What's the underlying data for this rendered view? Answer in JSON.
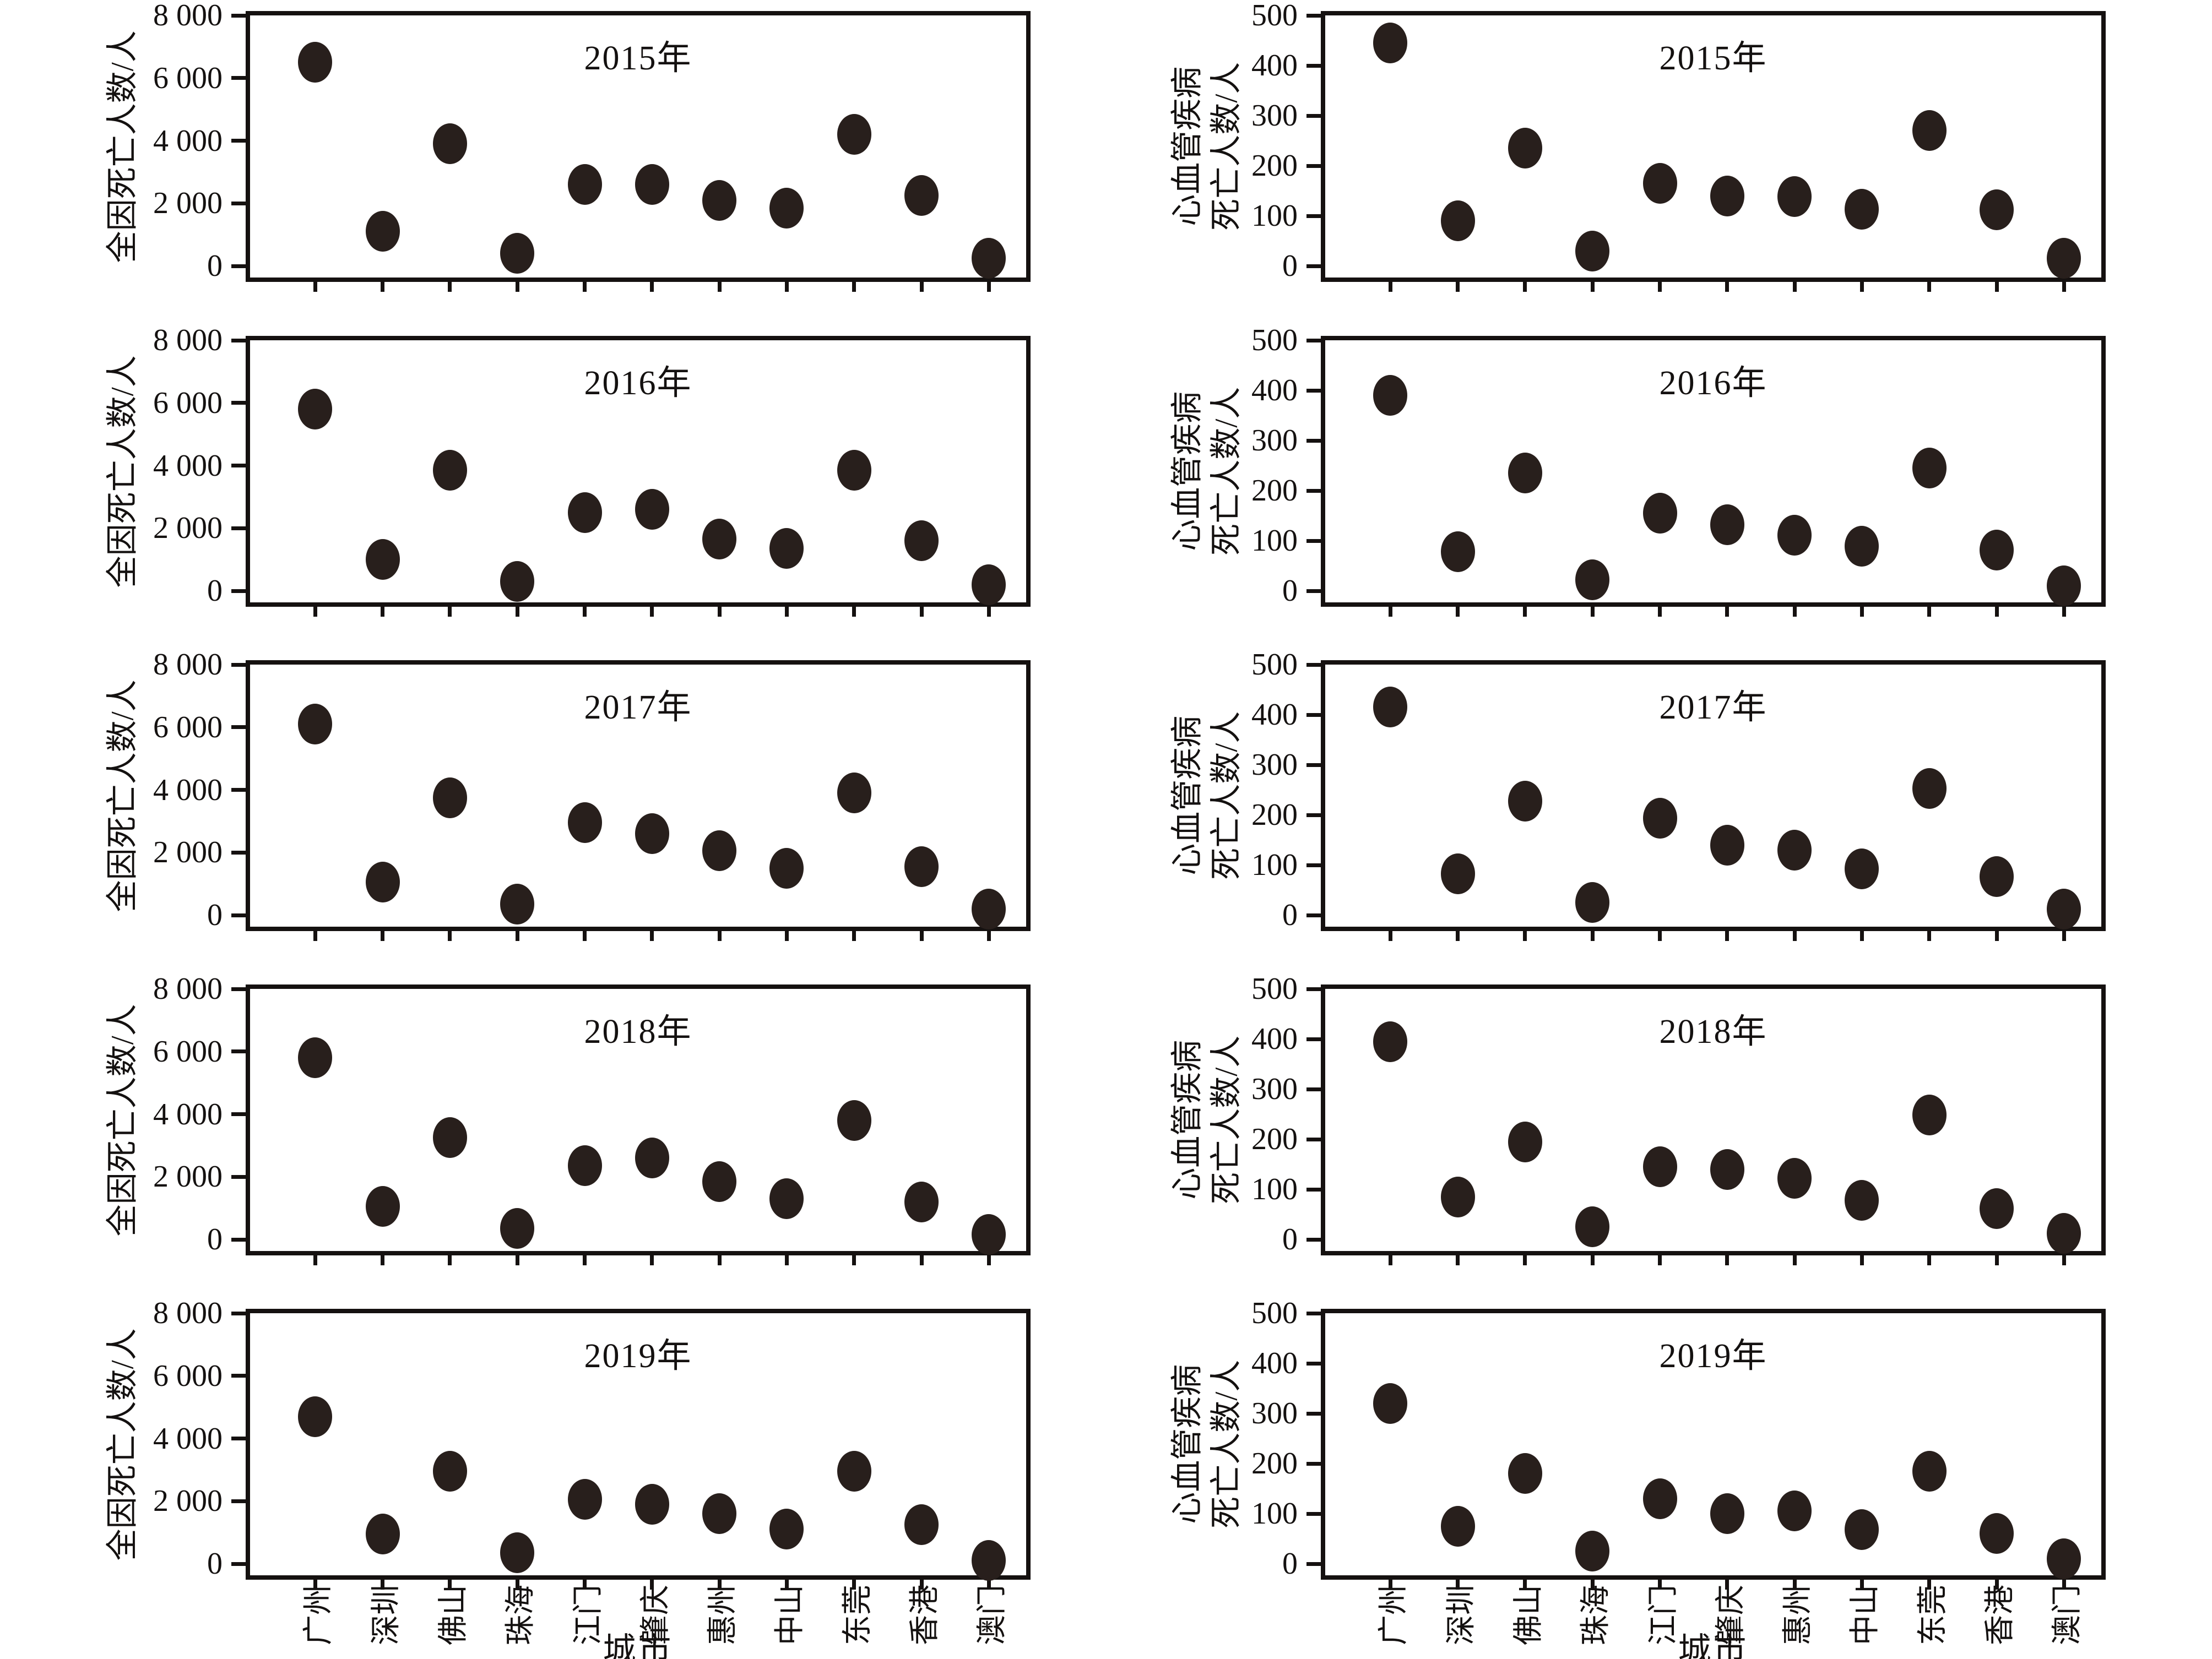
{
  "figure": {
    "xlabel": "城市",
    "left_ylabel_lines": [
      "全因死亡人数/人"
    ],
    "right_ylabel_lines": [
      "心血管疾病",
      "死亡人数/人"
    ],
    "left_ytick_labels": [
      "8 000",
      "6 000",
      "4 000",
      "2 000",
      "0"
    ],
    "right_ytick_labels": [
      "500",
      "400",
      "300",
      "200",
      "100",
      "0"
    ],
    "dot_color": "#281f1c",
    "frame_color": "#151110",
    "categories": [
      "广州",
      "深圳",
      "佛山",
      "珠海",
      "江门",
      "肇庆",
      "惠州",
      "中山",
      "东莞",
      "香港",
      "澳门"
    ]
  },
  "chart_data": [
    {
      "type": "scatter",
      "title": "2015年",
      "ylabel": "全因死亡人数/人",
      "categories": [
        "广州",
        "深圳",
        "佛山",
        "珠海",
        "江门",
        "肇庆",
        "惠州",
        "中山",
        "东莞",
        "香港",
        "澳门"
      ],
      "values": [
        6500,
        1100,
        3900,
        400,
        2600,
        2600,
        2100,
        1850,
        4200,
        2250,
        250
      ],
      "ylim": [
        0,
        8000
      ],
      "ytick_values": [
        8000,
        6000,
        4000,
        2000,
        0
      ],
      "ytick_labels": [
        "8 000",
        "6 000",
        "4 000",
        "2 000",
        "0"
      ],
      "grid": false,
      "legend": "none"
    },
    {
      "type": "scatter",
      "title": "2015年",
      "ylabel": "心血管疾病死亡人数/人",
      "categories": [
        "广州",
        "深圳",
        "佛山",
        "珠海",
        "江门",
        "肇庆",
        "惠州",
        "中山",
        "东莞",
        "香港",
        "澳门"
      ],
      "values": [
        445,
        90,
        235,
        30,
        165,
        140,
        138,
        113,
        270,
        112,
        15
      ],
      "ylim": [
        0,
        500
      ],
      "ytick_values": [
        500,
        400,
        300,
        200,
        100,
        0
      ],
      "ytick_labels": [
        "500",
        "400",
        "300",
        "200",
        "100",
        "0"
      ],
      "grid": false,
      "legend": "none"
    },
    {
      "type": "scatter",
      "title": "2016年",
      "ylabel": "全因死亡人数/人",
      "categories": [
        "广州",
        "深圳",
        "佛山",
        "珠海",
        "江门",
        "肇庆",
        "惠州",
        "中山",
        "东莞",
        "香港",
        "澳门"
      ],
      "values": [
        5800,
        1000,
        3850,
        300,
        2500,
        2600,
        1650,
        1350,
        3850,
        1600,
        200
      ],
      "ylim": [
        0,
        8000
      ],
      "ytick_values": [
        8000,
        6000,
        4000,
        2000,
        0
      ],
      "ytick_labels": [
        "8 000",
        "6 000",
        "4 000",
        "2 000",
        "0"
      ],
      "grid": false,
      "legend": "none"
    },
    {
      "type": "scatter",
      "title": "2016年",
      "ylabel": "心血管疾病死亡人数/人",
      "categories": [
        "广州",
        "深圳",
        "佛山",
        "珠海",
        "江门",
        "肇庆",
        "惠州",
        "中山",
        "东莞",
        "香港",
        "澳门"
      ],
      "values": [
        390,
        78,
        235,
        22,
        155,
        132,
        111,
        89,
        245,
        81,
        10
      ],
      "ylim": [
        0,
        500
      ],
      "ytick_values": [
        500,
        400,
        300,
        200,
        100,
        0
      ],
      "ytick_labels": [
        "500",
        "400",
        "300",
        "200",
        "100",
        "0"
      ],
      "grid": false,
      "legend": "none"
    },
    {
      "type": "scatter",
      "title": "2017年",
      "ylabel": "全因死亡人数/人",
      "categories": [
        "广州",
        "深圳",
        "佛山",
        "珠海",
        "江门",
        "肇庆",
        "惠州",
        "中山",
        "东莞",
        "香港",
        "澳门"
      ],
      "values": [
        6100,
        1050,
        3750,
        350,
        2950,
        2600,
        2050,
        1500,
        3900,
        1550,
        200
      ],
      "ylim": [
        0,
        8000
      ],
      "ytick_values": [
        8000,
        6000,
        4000,
        2000,
        0
      ],
      "ytick_labels": [
        "8 000",
        "6 000",
        "4 000",
        "2 000",
        "0"
      ],
      "grid": false,
      "legend": "none"
    },
    {
      "type": "scatter",
      "title": "2017年",
      "ylabel": "心血管疾病死亡人数/人",
      "categories": [
        "广州",
        "深圳",
        "佛山",
        "珠海",
        "江门",
        "肇庆",
        "惠州",
        "中山",
        "东莞",
        "香港",
        "澳门"
      ],
      "values": [
        415,
        82,
        228,
        25,
        193,
        140,
        130,
        92,
        253,
        77,
        12
      ],
      "ylim": [
        0,
        500
      ],
      "ytick_values": [
        500,
        400,
        300,
        200,
        100,
        0
      ],
      "ytick_labels": [
        "500",
        "400",
        "300",
        "200",
        "100",
        "0"
      ],
      "grid": false,
      "legend": "none"
    },
    {
      "type": "scatter",
      "title": "2018年",
      "ylabel": "全因死亡人数/人",
      "categories": [
        "广州",
        "深圳",
        "佛山",
        "珠海",
        "江门",
        "肇庆",
        "惠州",
        "中山",
        "东莞",
        "香港",
        "澳门"
      ],
      "values": [
        5800,
        1050,
        3250,
        350,
        2350,
        2600,
        1850,
        1300,
        3800,
        1200,
        150
      ],
      "ylim": [
        0,
        8000
      ],
      "ytick_values": [
        8000,
        6000,
        4000,
        2000,
        0
      ],
      "ytick_labels": [
        "8 000",
        "6 000",
        "4 000",
        "2 000",
        "0"
      ],
      "grid": false,
      "legend": "none"
    },
    {
      "type": "scatter",
      "title": "2018年",
      "ylabel": "心血管疾病死亡人数/人",
      "categories": [
        "广州",
        "深圳",
        "佛山",
        "珠海",
        "江门",
        "肇庆",
        "惠州",
        "中山",
        "东莞",
        "香港",
        "澳门"
      ],
      "values": [
        395,
        85,
        195,
        25,
        145,
        140,
        122,
        78,
        248,
        62,
        12
      ],
      "ylim": [
        0,
        500
      ],
      "ytick_values": [
        500,
        400,
        300,
        200,
        100,
        0
      ],
      "ytick_labels": [
        "500",
        "400",
        "300",
        "200",
        "100",
        "0"
      ],
      "grid": false,
      "legend": "none"
    },
    {
      "type": "scatter",
      "title": "2019年",
      "ylabel": "全因死亡人数/人",
      "categories": [
        "广州",
        "深圳",
        "佛山",
        "珠海",
        "江门",
        "肇庆",
        "惠州",
        "中山",
        "东莞",
        "香港",
        "澳门"
      ],
      "values": [
        4700,
        950,
        2950,
        350,
        2050,
        1900,
        1600,
        1100,
        2950,
        1250,
        100
      ],
      "ylim": [
        0,
        8000
      ],
      "ytick_values": [
        8000,
        6000,
        4000,
        2000,
        0
      ],
      "ytick_labels": [
        "8 000",
        "6 000",
        "4 000",
        "2 000",
        "0"
      ],
      "grid": false,
      "legend": "none"
    },
    {
      "type": "scatter",
      "title": "2019年",
      "ylabel": "心血管疾病死亡人数/人",
      "categories": [
        "广州",
        "深圳",
        "佛山",
        "珠海",
        "江门",
        "肇庆",
        "惠州",
        "中山",
        "东莞",
        "香港",
        "澳门"
      ],
      "values": [
        320,
        75,
        180,
        25,
        130,
        100,
        105,
        68,
        185,
        60,
        10
      ],
      "ylim": [
        0,
        500
      ],
      "ytick_values": [
        500,
        400,
        300,
        200,
        100,
        0
      ],
      "ytick_labels": [
        "500",
        "400",
        "300",
        "200",
        "100",
        "0"
      ],
      "grid": false,
      "legend": "none"
    }
  ]
}
